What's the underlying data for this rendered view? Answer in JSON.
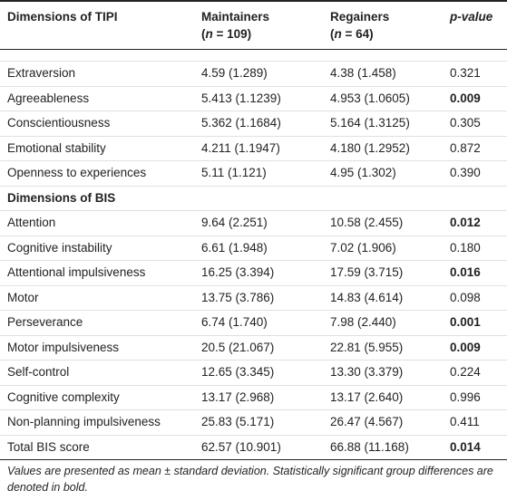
{
  "header": {
    "col1": "Dimensions of TIPI",
    "col2_line1": "Maintainers",
    "col2_n": "(n = 109)",
    "col3_line1": "Regainers",
    "col3_n": "(n = 64)",
    "col4": "p-value"
  },
  "tipi_rows": [
    {
      "label": "Extraversion",
      "maintainers": "4.59 (1.289)",
      "regainers": "4.38 (1.458)",
      "p": "0.321",
      "significant": false
    },
    {
      "label": "Agreeableness",
      "maintainers": "5.413 (1.1239)",
      "regainers": "4.953 (1.0605)",
      "p": "0.009",
      "significant": true
    },
    {
      "label": "Conscientiousness",
      "maintainers": "5.362 (1.1684)",
      "regainers": "5.164 (1.3125)",
      "p": "0.305",
      "significant": false
    },
    {
      "label": "Emotional stability",
      "maintainers": "4.211 (1.1947)",
      "regainers": "4.180 (1.2952)",
      "p": "0.872",
      "significant": false
    },
    {
      "label": "Openness to experiences",
      "maintainers": "5.11 (1.121)",
      "regainers": "4.95 (1.302)",
      "p": "0.390",
      "significant": false
    }
  ],
  "bis_section_label": "Dimensions of BIS",
  "bis_rows": [
    {
      "label": "Attention",
      "maintainers": "9.64 (2.251)",
      "regainers": "10.58 (2.455)",
      "p": "0.012",
      "significant": true
    },
    {
      "label": "Cognitive instability",
      "maintainers": "6.61 (1.948)",
      "regainers": "7.02 (1.906)",
      "p": "0.180",
      "significant": false
    },
    {
      "label": "Attentional impulsiveness",
      "maintainers": "16.25 (3.394)",
      "regainers": "17.59 (3.715)",
      "p": "0.016",
      "significant": true
    },
    {
      "label": "Motor",
      "maintainers": "13.75 (3.786)",
      "regainers": "14.83 (4.614)",
      "p": "0.098",
      "significant": false
    },
    {
      "label": "Perseverance",
      "maintainers": "6.74 (1.740)",
      "regainers": "7.98 (2.440)",
      "p": "0.001",
      "significant": true
    },
    {
      "label": "Motor impulsiveness",
      "maintainers": "20.5 (21.067)",
      "regainers": "22.81 (5.955)",
      "p": "0.009",
      "significant": true
    },
    {
      "label": "Self-control",
      "maintainers": "12.65 (3.345)",
      "regainers": "13.30 (3.379)",
      "p": "0.224",
      "significant": false
    },
    {
      "label": "Cognitive complexity",
      "maintainers": "13.17 (2.968)",
      "regainers": "13.17 (2.640)",
      "p": "0.996",
      "significant": false
    },
    {
      "label": "Non-planning impulsiveness",
      "maintainers": "25.83 (5.171)",
      "regainers": "26.47 (4.567)",
      "p": "0.411",
      "significant": false
    },
    {
      "label": "Total BIS score",
      "maintainers": "62.57 (10.901)",
      "regainers": "66.88 (11.168)",
      "p": "0.014",
      "significant": true
    }
  ],
  "footnote": "Values are presented as mean ± standard deviation. Statistically significant group differences are denoted in bold."
}
